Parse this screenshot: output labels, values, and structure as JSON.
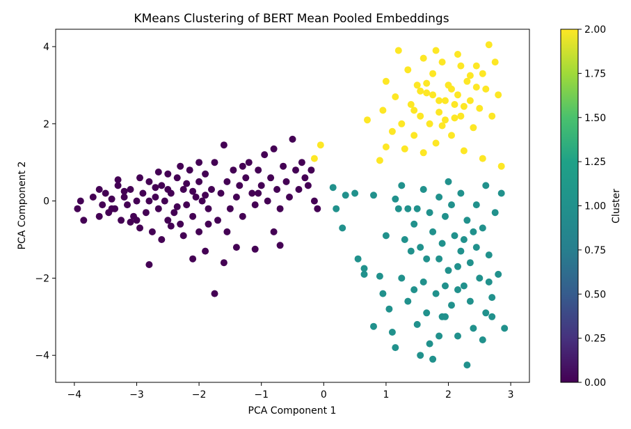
{
  "chart_data": {
    "type": "scatter",
    "title": "KMeans Clustering of BERT Mean Pooled Embeddings",
    "xlabel": "PCA Component 1",
    "ylabel": "PCA Component 2",
    "xlim": [
      -4.3,
      3.3
    ],
    "ylim": [
      -4.7,
      4.45
    ],
    "xticks": [
      -4,
      -3,
      -2,
      -1,
      0,
      1,
      2,
      3
    ],
    "xtick_labels": [
      "−4",
      "−3",
      "−2",
      "−1",
      "0",
      "1",
      "2",
      "3"
    ],
    "yticks": [
      -4,
      -2,
      0,
      2,
      4
    ],
    "ytick_labels": [
      "−4",
      "−2",
      "0",
      "2",
      "4"
    ],
    "grid": false,
    "colormap": "viridis",
    "colorbar": {
      "label": "Cluster",
      "range": [
        0,
        2
      ],
      "ticks": [
        0,
        0.25,
        0.5,
        0.75,
        1.0,
        1.25,
        1.5,
        1.75,
        2.0
      ],
      "tick_labels": [
        "0.00",
        "0.25",
        "0.50",
        "0.75",
        "1.00",
        "1.25",
        "1.50",
        "1.75",
        "2.00"
      ]
    },
    "cluster_colors": [
      "#440154",
      "#21918c",
      "#fde725"
    ],
    "clusters": [
      {
        "value": 0,
        "color": "#440154",
        "points": [
          [
            -3.9,
            0.0
          ],
          [
            -3.95,
            -0.2
          ],
          [
            -3.85,
            -0.5
          ],
          [
            -3.7,
            0.1
          ],
          [
            -3.6,
            0.3
          ],
          [
            -3.55,
            -0.1
          ],
          [
            -3.5,
            0.2
          ],
          [
            -3.45,
            -0.3
          ],
          [
            -3.4,
            0.05
          ],
          [
            -3.35,
            -0.2
          ],
          [
            -3.3,
            0.4
          ],
          [
            -3.25,
            -0.5
          ],
          [
            -3.2,
            0.1
          ],
          [
            -3.15,
            -0.1
          ],
          [
            -3.1,
            0.3
          ],
          [
            -3.05,
            -0.4
          ],
          [
            -3.0,
            0.0
          ],
          [
            -2.95,
            0.6
          ],
          [
            -2.95,
            -0.7
          ],
          [
            -2.9,
            0.2
          ],
          [
            -2.85,
            -0.3
          ],
          [
            -2.8,
            0.5
          ],
          [
            -2.75,
            -0.8
          ],
          [
            -2.7,
            0.1
          ],
          [
            -2.65,
            -0.2
          ],
          [
            -2.6,
            0.4
          ],
          [
            -2.6,
            -1.0
          ],
          [
            -2.55,
            0.0
          ],
          [
            -2.5,
            0.7
          ],
          [
            -2.5,
            -0.5
          ],
          [
            -2.45,
            0.2
          ],
          [
            -2.4,
            -0.3
          ],
          [
            -2.35,
            0.6
          ],
          [
            -2.3,
            -0.6
          ],
          [
            -2.25,
            0.3
          ],
          [
            -2.2,
            -0.1
          ],
          [
            -2.15,
            0.8
          ],
          [
            -2.1,
            -0.4
          ],
          [
            -2.05,
            0.1
          ],
          [
            -2.0,
            0.5
          ],
          [
            -2.0,
            -0.8
          ],
          [
            -1.95,
            0.0
          ],
          [
            -1.9,
            0.7
          ],
          [
            -1.85,
            -0.2
          ],
          [
            -1.8,
            0.3
          ],
          [
            -1.75,
            1.0
          ],
          [
            -1.7,
            -0.5
          ],
          [
            -1.65,
            0.2
          ],
          [
            -1.6,
            1.45
          ],
          [
            -1.55,
            0.5
          ],
          [
            -1.5,
            -0.2
          ],
          [
            -1.45,
            0.8
          ],
          [
            -1.4,
            0.1
          ],
          [
            -1.35,
            0.4
          ],
          [
            -1.3,
            -0.4
          ],
          [
            -1.25,
            0.6
          ],
          [
            -1.2,
            1.0
          ],
          [
            -1.15,
            0.2
          ],
          [
            -1.1,
            -0.1
          ],
          [
            -1.05,
            0.8
          ],
          [
            -1.0,
            0.4
          ],
          [
            -0.95,
            1.2
          ],
          [
            -0.9,
            0.0
          ],
          [
            -0.85,
            0.6
          ],
          [
            -0.8,
            1.35
          ],
          [
            -0.75,
            0.3
          ],
          [
            -0.7,
            -0.2
          ],
          [
            -0.65,
            0.9
          ],
          [
            -0.6,
            0.5
          ],
          [
            -0.55,
            0.1
          ],
          [
            -0.5,
            1.6
          ],
          [
            -0.45,
            0.8
          ],
          [
            -0.4,
            0.3
          ],
          [
            -0.35,
            1.0
          ],
          [
            -0.3,
            0.6
          ],
          [
            -0.25,
            0.4
          ],
          [
            -0.2,
            0.8
          ],
          [
            -0.15,
            0.0
          ],
          [
            -0.1,
            -0.2
          ],
          [
            -1.75,
            -2.4
          ],
          [
            -2.8,
            -1.65
          ],
          [
            -1.6,
            -1.6
          ],
          [
            -1.4,
            -1.2
          ],
          [
            -1.1,
            -1.25
          ],
          [
            -0.7,
            -1.15
          ],
          [
            -0.8,
            -0.8
          ],
          [
            -2.1,
            -1.5
          ],
          [
            -1.9,
            -1.3
          ],
          [
            -3.4,
            -0.2
          ],
          [
            -3.0,
            -0.5
          ],
          [
            -2.7,
            0.35
          ],
          [
            -2.35,
            -0.15
          ],
          [
            -2.2,
            0.45
          ],
          [
            -2.1,
            0.25
          ],
          [
            -1.9,
            0.15
          ],
          [
            -2.5,
            0.3
          ],
          [
            -2.8,
            0.0
          ],
          [
            -3.2,
            0.25
          ],
          [
            -3.6,
            -0.4
          ],
          [
            -2.45,
            -0.65
          ],
          [
            -2.25,
            -0.9
          ],
          [
            -1.85,
            -0.6
          ],
          [
            -1.55,
            -0.8
          ],
          [
            -1.3,
            0.9
          ],
          [
            -1.05,
            0.2
          ],
          [
            -2.0,
            1.0
          ],
          [
            -2.3,
            0.9
          ],
          [
            -2.65,
            0.75
          ],
          [
            -3.1,
            -0.55
          ],
          [
            -3.3,
            0.55
          ]
        ]
      },
      {
        "value": 1,
        "color": "#21918c",
        "points": [
          [
            0.15,
            0.35
          ],
          [
            0.2,
            -0.2
          ],
          [
            0.3,
            -0.7
          ],
          [
            0.35,
            0.15
          ],
          [
            0.5,
            0.2
          ],
          [
            0.55,
            -1.5
          ],
          [
            0.65,
            -1.75
          ],
          [
            0.65,
            -1.9
          ],
          [
            0.8,
            0.15
          ],
          [
            0.8,
            -3.25
          ],
          [
            0.9,
            -1.95
          ],
          [
            0.95,
            -2.4
          ],
          [
            1.0,
            -0.9
          ],
          [
            1.05,
            -2.8
          ],
          [
            1.1,
            -3.4
          ],
          [
            1.15,
            0.05
          ],
          [
            1.15,
            -3.8
          ],
          [
            1.2,
            -0.2
          ],
          [
            1.25,
            0.4
          ],
          [
            1.3,
            -1.0
          ],
          [
            1.35,
            -2.6
          ],
          [
            1.4,
            -1.3
          ],
          [
            1.45,
            -0.6
          ],
          [
            1.5,
            -3.2
          ],
          [
            1.5,
            -0.2
          ],
          [
            1.55,
            -4.0
          ],
          [
            1.6,
            -2.1
          ],
          [
            1.6,
            0.3
          ],
          [
            1.65,
            -1.5
          ],
          [
            1.7,
            -3.7
          ],
          [
            1.75,
            -0.8
          ],
          [
            1.8,
            -2.4
          ],
          [
            1.85,
            0.1
          ],
          [
            1.9,
            -1.1
          ],
          [
            1.9,
            -3.0
          ],
          [
            1.95,
            -0.4
          ],
          [
            2.0,
            -1.8
          ],
          [
            2.0,
            0.5
          ],
          [
            2.05,
            -2.7
          ],
          [
            2.1,
            -0.9
          ],
          [
            2.15,
            -3.5
          ],
          [
            2.2,
            -1.3
          ],
          [
            2.2,
            0.2
          ],
          [
            2.25,
            -2.2
          ],
          [
            2.3,
            -0.5
          ],
          [
            2.3,
            -4.25
          ],
          [
            2.35,
            -1.6
          ],
          [
            2.4,
            -3.3
          ],
          [
            2.45,
            -0.1
          ],
          [
            2.5,
            -2.0
          ],
          [
            2.55,
            -0.7
          ],
          [
            2.6,
            -2.9
          ],
          [
            2.6,
            0.4
          ],
          [
            2.65,
            -1.4
          ],
          [
            2.7,
            -2.5
          ],
          [
            2.75,
            -0.3
          ],
          [
            2.8,
            -1.9
          ],
          [
            2.85,
            0.2
          ],
          [
            2.9,
            -3.3
          ],
          [
            2.7,
            -3.0
          ],
          [
            1.65,
            -2.9
          ],
          [
            1.85,
            -3.5
          ],
          [
            2.15,
            -2.3
          ],
          [
            1.95,
            -3.0
          ],
          [
            2.35,
            -2.6
          ],
          [
            1.75,
            -4.1
          ],
          [
            1.55,
            -1.2
          ],
          [
            1.35,
            -0.2
          ],
          [
            1.45,
            -2.3
          ],
          [
            1.25,
            -2.0
          ],
          [
            2.05,
            -0.1
          ],
          [
            2.25,
            -1.0
          ],
          [
            1.85,
            -1.5
          ],
          [
            2.45,
            -1.2
          ],
          [
            2.55,
            -3.6
          ],
          [
            1.95,
            -2.2
          ],
          [
            2.15,
            -1.7
          ],
          [
            1.7,
            -0.3
          ],
          [
            2.4,
            -0.8
          ],
          [
            2.65,
            -2.1
          ]
        ]
      },
      {
        "value": 2,
        "color": "#fde725",
        "points": [
          [
            -0.15,
            1.1
          ],
          [
            -0.05,
            1.45
          ],
          [
            0.7,
            2.1
          ],
          [
            0.9,
            1.05
          ],
          [
            0.95,
            2.35
          ],
          [
            1.0,
            1.4
          ],
          [
            1.0,
            3.1
          ],
          [
            1.1,
            1.8
          ],
          [
            1.15,
            2.7
          ],
          [
            1.2,
            3.9
          ],
          [
            1.25,
            2.0
          ],
          [
            1.3,
            1.35
          ],
          [
            1.35,
            3.4
          ],
          [
            1.4,
            2.5
          ],
          [
            1.45,
            1.7
          ],
          [
            1.5,
            3.0
          ],
          [
            1.55,
            2.2
          ],
          [
            1.6,
            3.7
          ],
          [
            1.6,
            1.25
          ],
          [
            1.65,
            2.8
          ],
          [
            1.7,
            2.0
          ],
          [
            1.75,
            3.3
          ],
          [
            1.8,
            1.5
          ],
          [
            1.85,
            2.6
          ],
          [
            1.9,
            3.6
          ],
          [
            1.95,
            2.1
          ],
          [
            2.0,
            3.0
          ],
          [
            2.05,
            1.7
          ],
          [
            2.1,
            2.5
          ],
          [
            2.15,
            3.8
          ],
          [
            2.2,
            2.2
          ],
          [
            2.25,
            1.3
          ],
          [
            2.3,
            3.1
          ],
          [
            2.35,
            2.6
          ],
          [
            2.4,
            1.9
          ],
          [
            2.45,
            3.5
          ],
          [
            2.5,
            2.4
          ],
          [
            2.55,
            1.1
          ],
          [
            2.6,
            2.9
          ],
          [
            2.65,
            4.05
          ],
          [
            2.7,
            2.2
          ],
          [
            2.75,
            3.6
          ],
          [
            2.8,
            2.75
          ],
          [
            2.85,
            0.9
          ],
          [
            1.85,
            2.3
          ],
          [
            2.05,
            2.9
          ],
          [
            1.95,
            2.6
          ],
          [
            2.15,
            2.75
          ],
          [
            1.75,
            2.75
          ],
          [
            2.25,
            2.45
          ],
          [
            1.65,
            3.05
          ],
          [
            2.35,
            3.25
          ],
          [
            1.55,
            2.85
          ],
          [
            2.45,
            2.95
          ],
          [
            1.45,
            2.35
          ],
          [
            2.55,
            3.3
          ],
          [
            1.9,
            1.95
          ],
          [
            2.1,
            2.15
          ],
          [
            1.8,
            3.9
          ],
          [
            2.2,
            3.5
          ]
        ]
      }
    ]
  }
}
